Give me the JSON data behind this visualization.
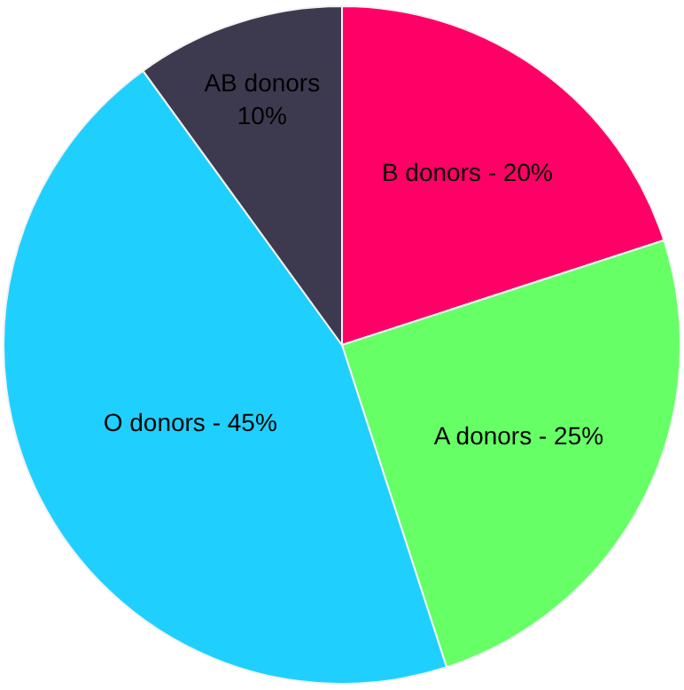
{
  "chart_data": {
    "type": "pie",
    "categories": [
      "B donors",
      "A donors",
      "O donors",
      "AB donors"
    ],
    "values": [
      20,
      25,
      45,
      10
    ],
    "colors": [
      "#ff0066",
      "#66ff66",
      "#1fd0ff",
      "#3d3a4f"
    ],
    "value_labels": [
      "20%",
      "25%",
      "45%",
      "10%"
    ],
    "legend": false
  }
}
